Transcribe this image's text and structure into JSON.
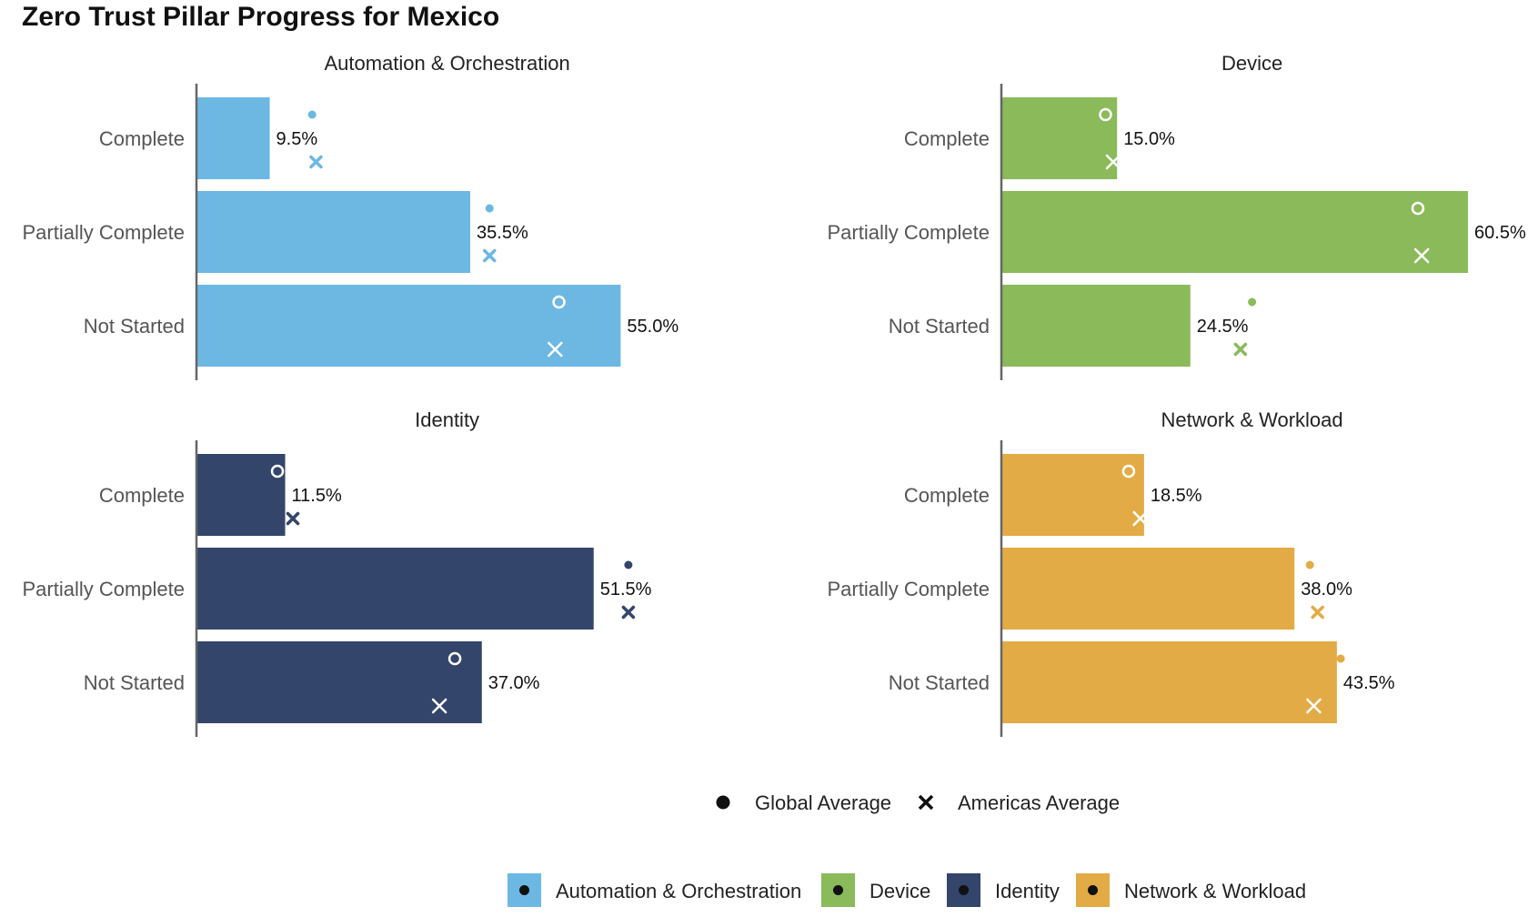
{
  "title": "Zero Trust Pillar Progress for Mexico",
  "chart_data": {
    "type": "bar",
    "orientation": "horizontal",
    "categories": [
      "Complete",
      "Partially Complete",
      "Not Started"
    ],
    "xlim": [
      0,
      65
    ],
    "panels": [
      {
        "name": "Automation & Orchestration",
        "color": "#6cb8e3",
        "values": [
          9.5,
          35.5,
          55.0
        ],
        "value_labels": [
          "9.5%",
          "35.5%",
          "55.0%"
        ],
        "global_average": [
          15.0,
          38.0,
          47.0
        ],
        "americas_average": [
          15.5,
          38.0,
          46.5
        ]
      },
      {
        "name": "Device",
        "color": "#8aba5a",
        "values": [
          15.0,
          60.5,
          24.5
        ],
        "value_labels": [
          "15.0%",
          "60.5%",
          "24.5%"
        ],
        "global_average": [
          13.5,
          54.0,
          32.5
        ],
        "americas_average": [
          14.5,
          54.5,
          31.0
        ]
      },
      {
        "name": "Identity",
        "color": "#33456b",
        "values": [
          11.5,
          51.5,
          37.0
        ],
        "value_labels": [
          "11.5%",
          "51.5%",
          "37.0%"
        ],
        "global_average": [
          10.5,
          56.0,
          33.5
        ],
        "americas_average": [
          12.5,
          56.0,
          31.5
        ]
      },
      {
        "name": "Network & Workload",
        "color": "#e3ab45",
        "values": [
          18.5,
          38.0,
          43.5
        ],
        "value_labels": [
          "18.5%",
          "38.0%",
          "43.5%"
        ],
        "global_average": [
          16.5,
          40.0,
          44.0
        ],
        "americas_average": [
          18.0,
          41.0,
          40.5
        ]
      }
    ],
    "marker_legend": [
      {
        "marker": "dot",
        "label": "Global Average"
      },
      {
        "marker": "cross",
        "label": "Americas Average"
      }
    ],
    "color_legend": [
      "Automation & Orchestration",
      "Device",
      "Identity",
      "Network & Workload"
    ]
  }
}
